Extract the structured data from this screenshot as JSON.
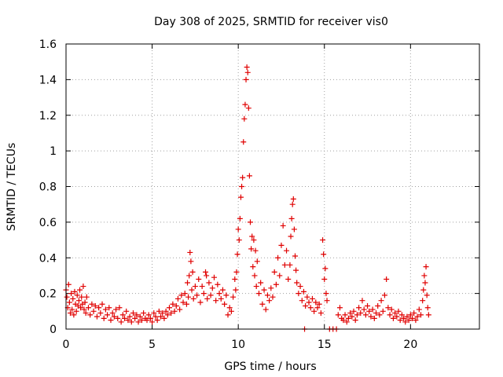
{
  "chart_data": {
    "type": "scatter",
    "title": "Day 308 of 2025, SRMTID for receiver vis0",
    "xlabel": "GPS time / hours",
    "ylabel": "SRMTID / TECUs",
    "xlim": [
      0,
      24
    ],
    "ylim": [
      0,
      1.6
    ],
    "xticks": [
      0,
      5,
      10,
      15,
      20
    ],
    "yticks": [
      0,
      0.2,
      0.4,
      0.6,
      0.8,
      1,
      1.2,
      1.4,
      1.6
    ],
    "xtick_labels": [
      "0",
      "5",
      "10",
      "15",
      "20"
    ],
    "ytick_labels": [
      "0",
      "0.2",
      "0.4",
      "0.6",
      "0.8",
      "1",
      "1.2",
      "1.4",
      "1.6"
    ],
    "grid": true,
    "legend": "none",
    "marker": "+",
    "series": [
      {
        "name": "SRMTID",
        "color": "#e00000",
        "points": [
          [
            0.0,
            0.22
          ],
          [
            0.05,
            0.18
          ],
          [
            0.1,
            0.12
          ],
          [
            0.15,
            0.25
          ],
          [
            0.2,
            0.15
          ],
          [
            0.25,
            0.09
          ],
          [
            0.3,
            0.2
          ],
          [
            0.35,
            0.11
          ],
          [
            0.4,
            0.17
          ],
          [
            0.45,
            0.08
          ],
          [
            0.5,
            0.21
          ],
          [
            0.55,
            0.14
          ],
          [
            0.6,
            0.1
          ],
          [
            0.65,
            0.19
          ],
          [
            0.7,
            0.13
          ],
          [
            0.75,
            0.16
          ],
          [
            0.8,
            0.22
          ],
          [
            0.85,
            0.12
          ],
          [
            0.9,
            0.18
          ],
          [
            0.95,
            0.14
          ],
          [
            1.0,
            0.24
          ],
          [
            1.05,
            0.11
          ],
          [
            1.1,
            0.15
          ],
          [
            1.15,
            0.09
          ],
          [
            1.2,
            0.18
          ],
          [
            1.3,
            0.12
          ],
          [
            1.4,
            0.08
          ],
          [
            1.5,
            0.14
          ],
          [
            1.6,
            0.1
          ],
          [
            1.7,
            0.13
          ],
          [
            1.8,
            0.07
          ],
          [
            1.9,
            0.12
          ],
          [
            2.0,
            0.09
          ],
          [
            2.1,
            0.14
          ],
          [
            2.2,
            0.06
          ],
          [
            2.3,
            0.11
          ],
          [
            2.4,
            0.08
          ],
          [
            2.5,
            0.12
          ],
          [
            2.6,
            0.05
          ],
          [
            2.7,
            0.09
          ],
          [
            2.8,
            0.07
          ],
          [
            2.9,
            0.11
          ],
          [
            3.0,
            0.06
          ],
          [
            3.1,
            0.12
          ],
          [
            3.2,
            0.04
          ],
          [
            3.3,
            0.08
          ],
          [
            3.4,
            0.06
          ],
          [
            3.5,
            0.1
          ],
          [
            3.6,
            0.05
          ],
          [
            3.7,
            0.07
          ],
          [
            3.8,
            0.04
          ],
          [
            3.9,
            0.09
          ],
          [
            4.0,
            0.06
          ],
          [
            4.1,
            0.08
          ],
          [
            4.2,
            0.04
          ],
          [
            4.3,
            0.07
          ],
          [
            4.4,
            0.05
          ],
          [
            4.5,
            0.09
          ],
          [
            4.6,
            0.06
          ],
          [
            4.7,
            0.05
          ],
          [
            4.8,
            0.08
          ],
          [
            4.9,
            0.06
          ],
          [
            5.0,
            0.04
          ],
          [
            5.1,
            0.09
          ],
          [
            5.2,
            0.07
          ],
          [
            5.3,
            0.05
          ],
          [
            5.4,
            0.1
          ],
          [
            5.5,
            0.07
          ],
          [
            5.6,
            0.09
          ],
          [
            5.7,
            0.06
          ],
          [
            5.8,
            0.1
          ],
          [
            5.9,
            0.08
          ],
          [
            6.0,
            0.12
          ],
          [
            6.1,
            0.09
          ],
          [
            6.2,
            0.14
          ],
          [
            6.3,
            0.1
          ],
          [
            6.4,
            0.13
          ],
          [
            6.5,
            0.17
          ],
          [
            6.6,
            0.11
          ],
          [
            6.7,
            0.19
          ],
          [
            6.8,
            0.15
          ],
          [
            6.9,
            0.2
          ],
          [
            7.0,
            0.14
          ],
          [
            7.05,
            0.26
          ],
          [
            7.1,
            0.18
          ],
          [
            7.15,
            0.3
          ],
          [
            7.2,
            0.43
          ],
          [
            7.25,
            0.38
          ],
          [
            7.3,
            0.22
          ],
          [
            7.35,
            0.32
          ],
          [
            7.4,
            0.17
          ],
          [
            7.5,
            0.24
          ],
          [
            7.6,
            0.19
          ],
          [
            7.7,
            0.28
          ],
          [
            7.8,
            0.15
          ],
          [
            7.9,
            0.24
          ],
          [
            8.0,
            0.2
          ],
          [
            8.1,
            0.32
          ],
          [
            8.2,
            0.17
          ],
          [
            8.3,
            0.26
          ],
          [
            8.4,
            0.19
          ],
          [
            8.5,
            0.23
          ],
          [
            8.6,
            0.29
          ],
          [
            8.7,
            0.16
          ],
          [
            8.8,
            0.25
          ],
          [
            8.9,
            0.2
          ],
          [
            9.0,
            0.17
          ],
          [
            9.1,
            0.22
          ],
          [
            9.2,
            0.14
          ],
          [
            9.3,
            0.19
          ],
          [
            9.4,
            0.08
          ],
          [
            9.5,
            0.12
          ],
          [
            9.6,
            0.1
          ],
          [
            9.7,
            0.18
          ],
          [
            9.8,
            0.28
          ],
          [
            9.85,
            0.22
          ],
          [
            9.9,
            0.32
          ],
          [
            9.95,
            0.42
          ],
          [
            10.0,
            0.56
          ],
          [
            10.05,
            0.5
          ],
          [
            10.1,
            0.62
          ],
          [
            10.15,
            0.74
          ],
          [
            10.2,
            0.8
          ],
          [
            10.25,
            0.85
          ],
          [
            10.3,
            1.05
          ],
          [
            10.35,
            1.18
          ],
          [
            10.4,
            1.26
          ],
          [
            10.45,
            1.4
          ],
          [
            10.5,
            1.47
          ],
          [
            10.55,
            1.44
          ],
          [
            10.6,
            1.24
          ],
          [
            10.65,
            0.86
          ],
          [
            10.7,
            0.6
          ],
          [
            10.75,
            0.45
          ],
          [
            10.8,
            0.52
          ],
          [
            10.85,
            0.35
          ],
          [
            10.9,
            0.5
          ],
          [
            10.95,
            0.3
          ],
          [
            11.0,
            0.44
          ],
          [
            11.05,
            0.24
          ],
          [
            11.1,
            0.38
          ],
          [
            11.2,
            0.2
          ],
          [
            11.3,
            0.26
          ],
          [
            11.4,
            0.14
          ],
          [
            11.5,
            0.22
          ],
          [
            11.6,
            0.11
          ],
          [
            11.7,
            0.19
          ],
          [
            11.8,
            0.16
          ],
          [
            11.9,
            0.23
          ],
          [
            12.0,
            0.18
          ],
          [
            12.1,
            0.32
          ],
          [
            12.2,
            0.25
          ],
          [
            12.3,
            0.4
          ],
          [
            12.4,
            0.3
          ],
          [
            12.5,
            0.47
          ],
          [
            12.6,
            0.58
          ],
          [
            12.7,
            0.36
          ],
          [
            12.8,
            0.44
          ],
          [
            12.9,
            0.28
          ],
          [
            13.0,
            0.36
          ],
          [
            13.05,
            0.52
          ],
          [
            13.1,
            0.62
          ],
          [
            13.15,
            0.7
          ],
          [
            13.2,
            0.73
          ],
          [
            13.25,
            0.56
          ],
          [
            13.3,
            0.41
          ],
          [
            13.35,
            0.33
          ],
          [
            13.4,
            0.26
          ],
          [
            13.5,
            0.2
          ],
          [
            13.6,
            0.24
          ],
          [
            13.7,
            0.16
          ],
          [
            13.8,
            0.21
          ],
          [
            13.9,
            0.13
          ],
          [
            14.0,
            0.18
          ],
          [
            14.1,
            0.15
          ],
          [
            14.2,
            0.12
          ],
          [
            14.3,
            0.17
          ],
          [
            14.4,
            0.1
          ],
          [
            14.5,
            0.15
          ],
          [
            14.6,
            0.12
          ],
          [
            14.7,
            0.14
          ],
          [
            14.8,
            0.09
          ],
          [
            14.9,
            0.5
          ],
          [
            14.95,
            0.42
          ],
          [
            15.0,
            0.28
          ],
          [
            15.05,
            0.34
          ],
          [
            15.1,
            0.2
          ],
          [
            15.15,
            0.16
          ],
          [
            15.3,
            0.0
          ],
          [
            15.5,
            0.0
          ],
          [
            15.7,
            0.0
          ],
          [
            13.85,
            0.0
          ],
          [
            15.8,
            0.08
          ],
          [
            15.9,
            0.12
          ],
          [
            16.0,
            0.06
          ],
          [
            16.1,
            0.05
          ],
          [
            16.2,
            0.08
          ],
          [
            16.3,
            0.04
          ],
          [
            16.4,
            0.06
          ],
          [
            16.5,
            0.09
          ],
          [
            16.6,
            0.07
          ],
          [
            16.7,
            0.1
          ],
          [
            16.8,
            0.05
          ],
          [
            16.9,
            0.08
          ],
          [
            17.0,
            0.12
          ],
          [
            17.1,
            0.09
          ],
          [
            17.2,
            0.16
          ],
          [
            17.3,
            0.11
          ],
          [
            17.4,
            0.08
          ],
          [
            17.5,
            0.13
          ],
          [
            17.6,
            0.1
          ],
          [
            17.7,
            0.07
          ],
          [
            17.8,
            0.11
          ],
          [
            17.9,
            0.06
          ],
          [
            18.0,
            0.09
          ],
          [
            18.1,
            0.13
          ],
          [
            18.2,
            0.08
          ],
          [
            18.3,
            0.16
          ],
          [
            18.4,
            0.1
          ],
          [
            18.5,
            0.19
          ],
          [
            18.6,
            0.28
          ],
          [
            18.7,
            0.12
          ],
          [
            18.8,
            0.08
          ],
          [
            18.9,
            0.11
          ],
          [
            19.0,
            0.06
          ],
          [
            19.1,
            0.09
          ],
          [
            19.2,
            0.07
          ],
          [
            19.3,
            0.1
          ],
          [
            19.4,
            0.05
          ],
          [
            19.5,
            0.08
          ],
          [
            19.6,
            0.06
          ],
          [
            19.7,
            0.04
          ],
          [
            19.8,
            0.07
          ],
          [
            19.9,
            0.05
          ],
          [
            20.0,
            0.08
          ],
          [
            20.1,
            0.06
          ],
          [
            20.2,
            0.09
          ],
          [
            20.3,
            0.05
          ],
          [
            20.4,
            0.07
          ],
          [
            20.5,
            0.11
          ],
          [
            20.6,
            0.08
          ],
          [
            20.7,
            0.16
          ],
          [
            20.75,
            0.22
          ],
          [
            20.8,
            0.3
          ],
          [
            20.85,
            0.26
          ],
          [
            20.9,
            0.35
          ],
          [
            20.95,
            0.19
          ],
          [
            21.0,
            0.12
          ],
          [
            21.05,
            0.08
          ],
          [
            8.15,
            0.3
          ]
        ]
      }
    ]
  }
}
